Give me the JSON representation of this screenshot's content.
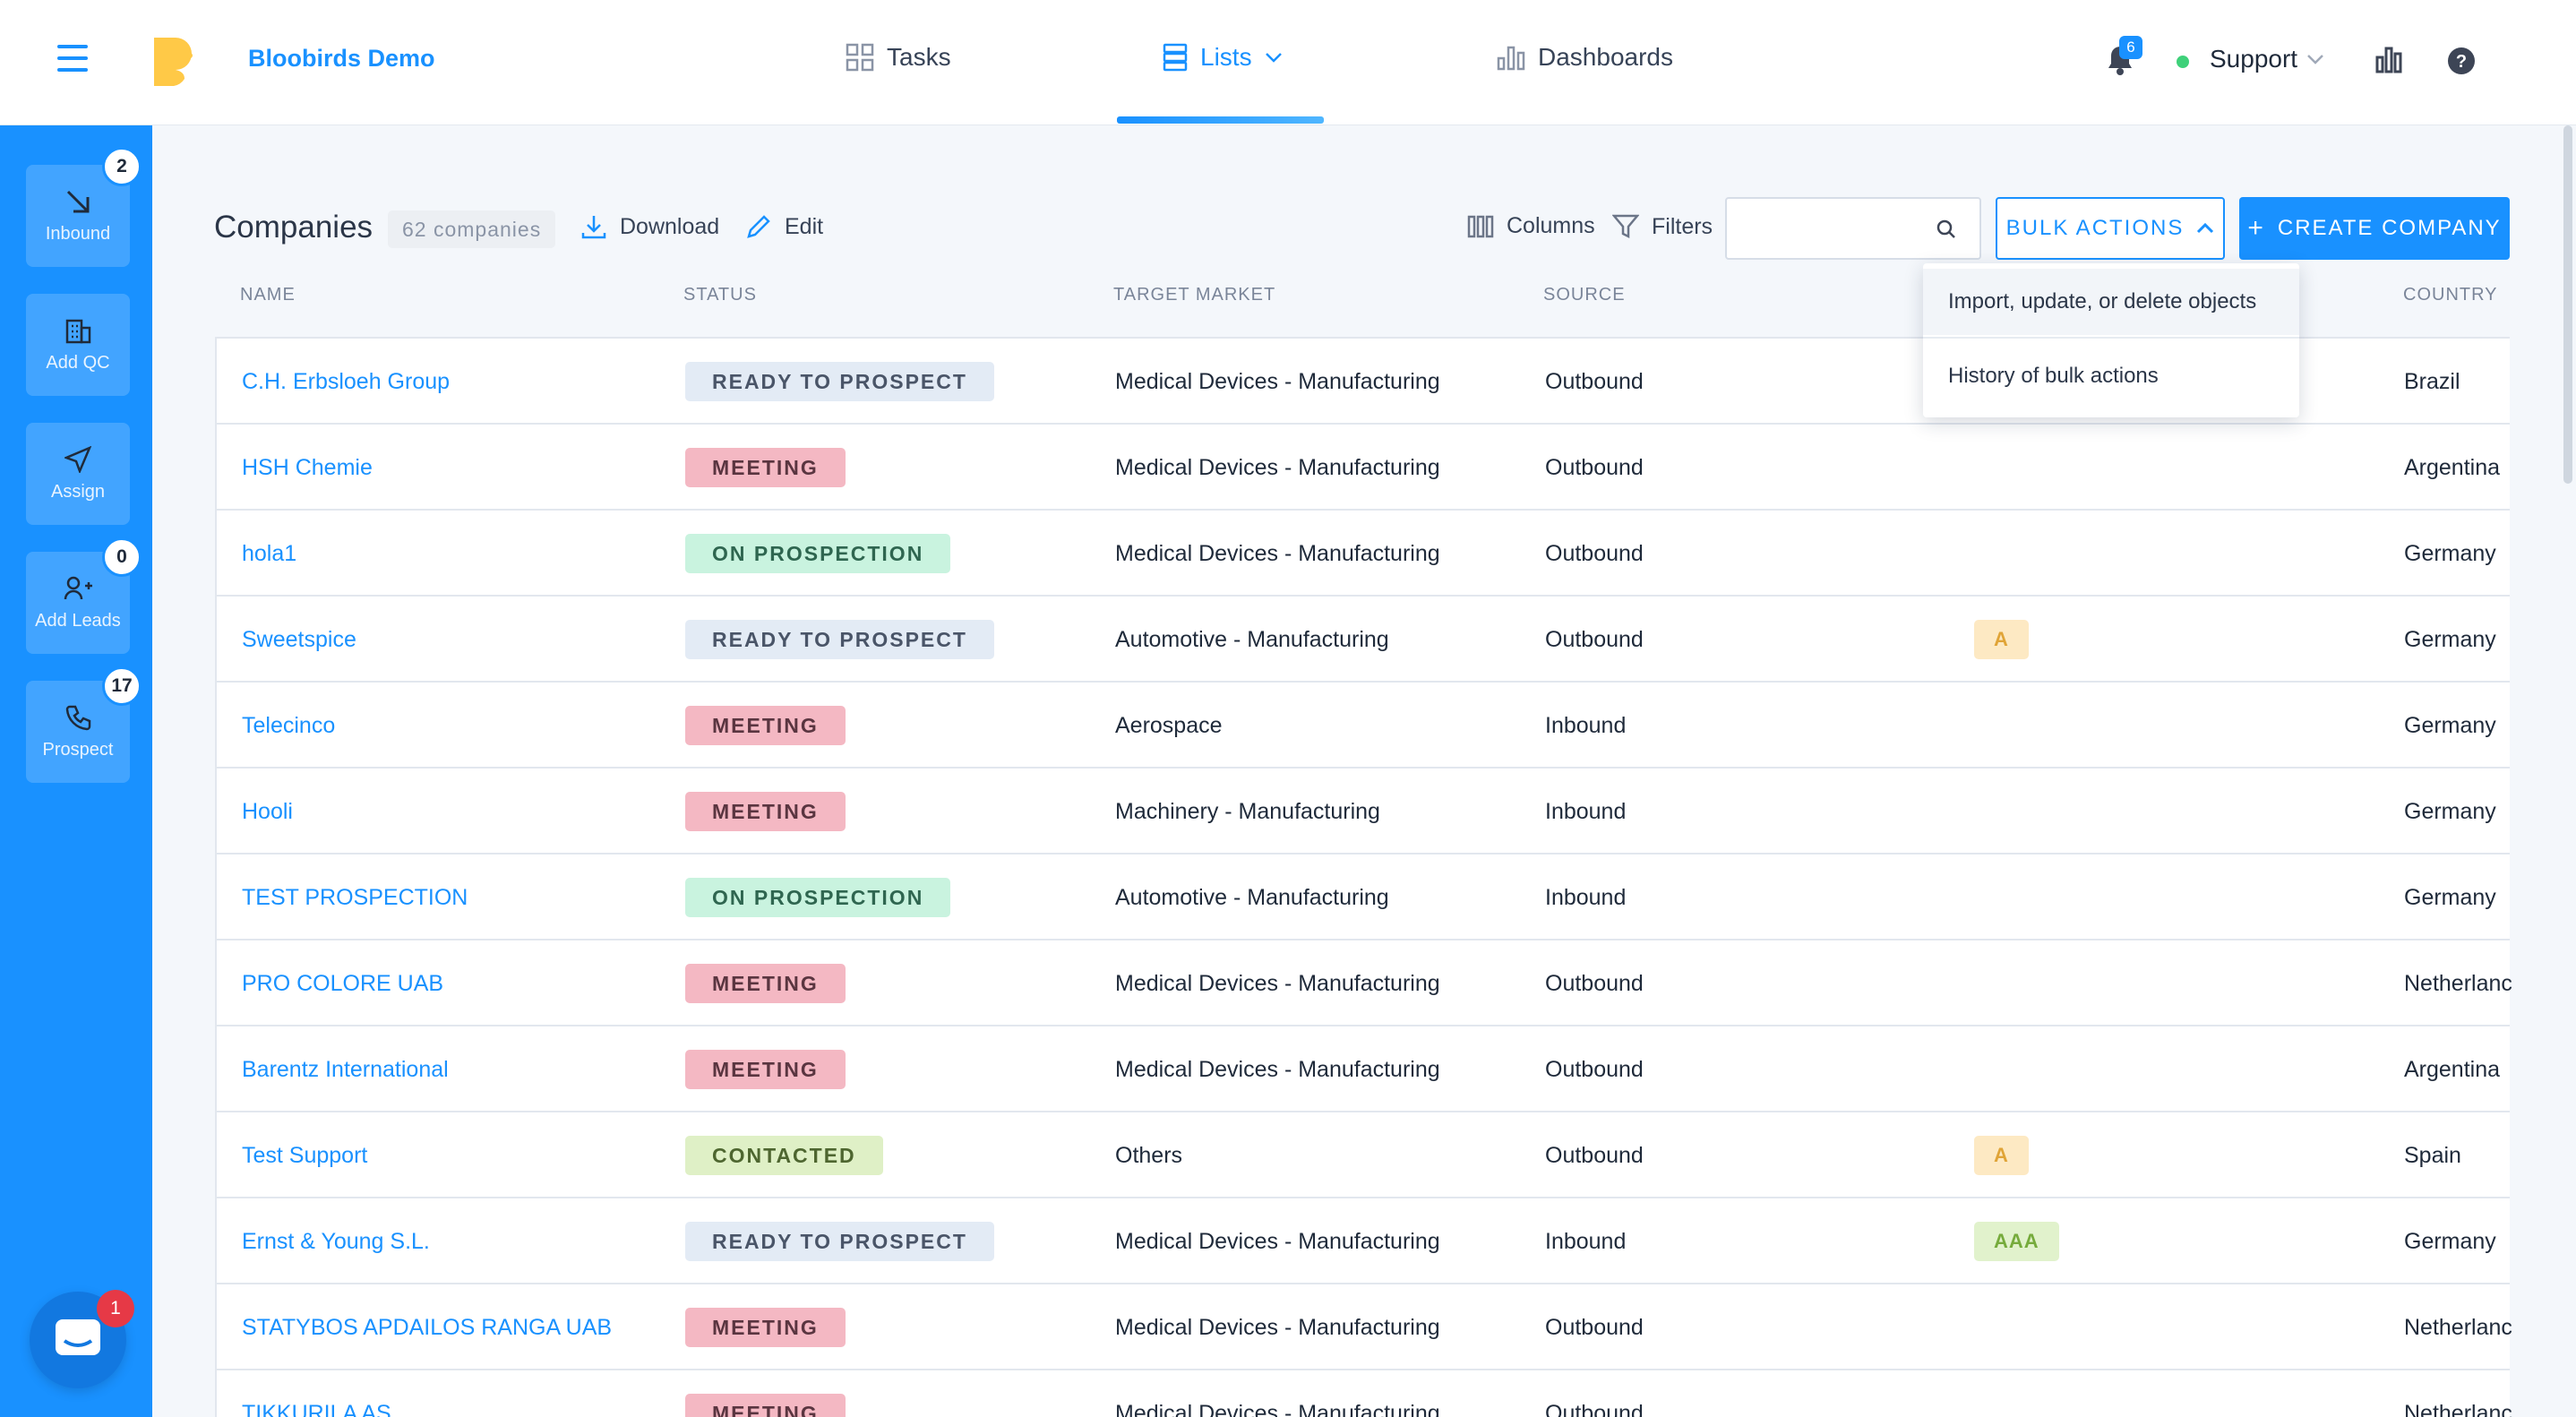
{
  "app": {
    "name": "Bloobirds Demo"
  },
  "nav": {
    "tasks": "Tasks",
    "lists": "Lists",
    "dashboards": "Dashboards",
    "notifications_count": "6",
    "user": "Support"
  },
  "sidebar": {
    "items": [
      {
        "label": "Inbound",
        "badge": "2"
      },
      {
        "label": "Add QC"
      },
      {
        "label": "Assign"
      },
      {
        "label": "Add Leads",
        "badge": "0"
      },
      {
        "label": "Prospect",
        "badge": "17"
      }
    ],
    "chat_badge": "1"
  },
  "header": {
    "title": "Companies",
    "count": "62 companies",
    "download": "Download",
    "edit": "Edit",
    "columns": "Columns",
    "filters": "Filters",
    "search_placeholder": "",
    "bulk_actions": "BULK ACTIONS",
    "create_company": "CREATE COMPANY"
  },
  "bulk_menu": {
    "items": [
      "Import, update, or delete objects",
      "History of bulk actions"
    ]
  },
  "table": {
    "columns": [
      "NAME",
      "STATUS",
      "TARGET MARKET",
      "SOURCE",
      "COUNTRY"
    ],
    "rows": [
      {
        "name": "C.H. Erbsloeh Group",
        "status": "READY TO PROSPECT",
        "market": "Medical Devices - Manufacturing",
        "source": "Outbound",
        "extra": "",
        "country": "Brazil"
      },
      {
        "name": "HSH Chemie",
        "status": "MEETING",
        "market": "Medical Devices - Manufacturing",
        "source": "Outbound",
        "extra": "",
        "country": "Argentina"
      },
      {
        "name": "hola1",
        "status": "ON PROSPECTION",
        "market": "Medical Devices - Manufacturing",
        "source": "Outbound",
        "extra": "",
        "country": "Germany"
      },
      {
        "name": "Sweetspice",
        "status": "READY TO PROSPECT",
        "market": "Automotive - Manufacturing",
        "source": "Outbound",
        "extra": "A",
        "country": "Germany"
      },
      {
        "name": "Telecinco",
        "status": "MEETING",
        "market": "Aerospace",
        "source": "Inbound",
        "extra": "",
        "country": "Germany"
      },
      {
        "name": "Hooli",
        "status": "MEETING",
        "market": "Machinery - Manufacturing",
        "source": "Inbound",
        "extra": "",
        "country": "Germany"
      },
      {
        "name": "TEST PROSPECTION",
        "status": "ON PROSPECTION",
        "market": "Automotive - Manufacturing",
        "source": "Inbound",
        "extra": "",
        "country": "Germany"
      },
      {
        "name": "PRO COLORE UAB",
        "status": "MEETING",
        "market": "Medical Devices - Manufacturing",
        "source": "Outbound",
        "extra": "",
        "country": "Netherlanc"
      },
      {
        "name": "Barentz International",
        "status": "MEETING",
        "market": "Medical Devices - Manufacturing",
        "source": "Outbound",
        "extra": "",
        "country": "Argentina"
      },
      {
        "name": "Test Support",
        "status": "CONTACTED",
        "market": "Others",
        "source": "Outbound",
        "extra": "A",
        "country": "Spain"
      },
      {
        "name": "Ernst & Young S.L.",
        "status": "READY TO PROSPECT",
        "market": "Medical Devices - Manufacturing",
        "source": "Inbound",
        "extra": "AAA",
        "country": "Germany"
      },
      {
        "name": "STATYBOS APDAILOS RANGA UAB",
        "status": "MEETING",
        "market": "Medical Devices - Manufacturing",
        "source": "Outbound",
        "extra": "",
        "country": "Netherlanc"
      },
      {
        "name": "TIKKURILA AS",
        "status": "MEETING",
        "market": "Medical Devices - Manufacturing",
        "source": "Outbound",
        "extra": "",
        "country": "Netherlanc"
      }
    ]
  },
  "colors": {
    "accent": "#1991ff",
    "status": {
      "READY TO PROSPECT": {
        "bg": "#e3ebf5",
        "fg": "#4a5568"
      },
      "MEETING": {
        "bg": "#f4b8c3",
        "fg": "#5a3540"
      },
      "ON PROSPECTION": {
        "bg": "#c9f3df",
        "fg": "#2f6650"
      },
      "CONTACTED": {
        "bg": "#dff0c6",
        "fg": "#4e6630"
      }
    },
    "tags": {
      "A": {
        "bg": "#fde9c3",
        "fg": "#e0a437"
      },
      "AAA": {
        "bg": "#e1f2cc",
        "fg": "#76ab3c"
      }
    }
  }
}
